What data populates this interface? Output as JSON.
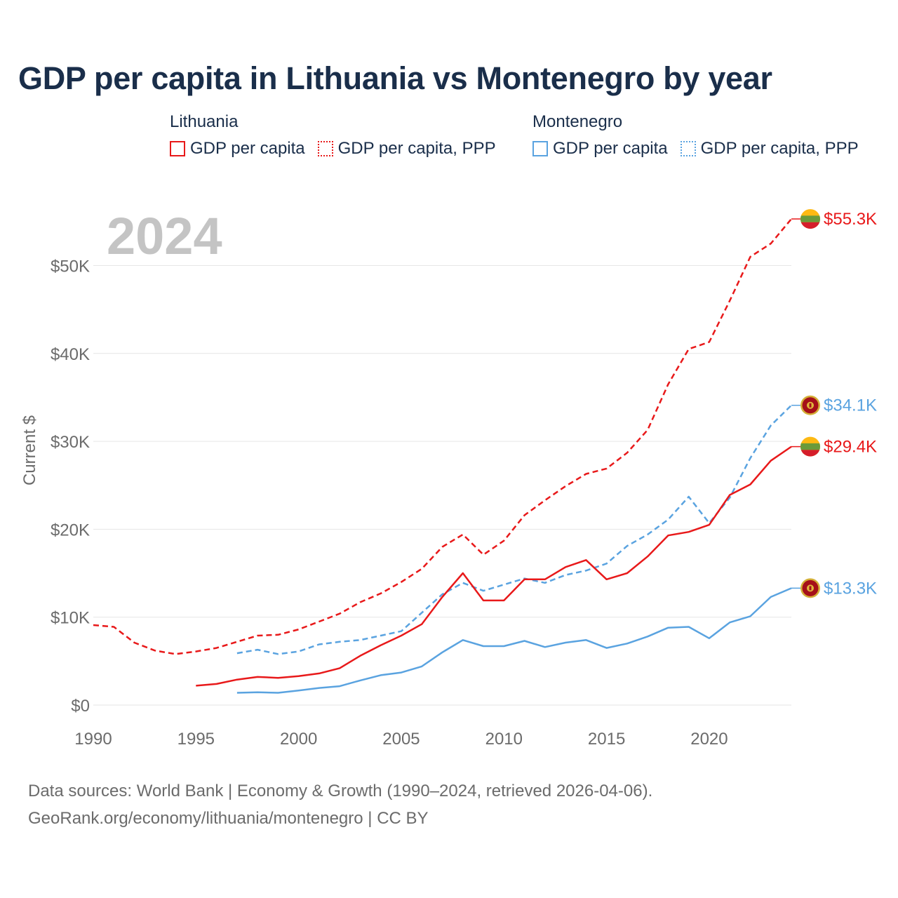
{
  "title": "GDP per capita in Lithuania vs Montenegro by year",
  "legend": {
    "lithuania": {
      "label": "Lithuania",
      "gdp": "GDP per capita",
      "ppp": "GDP per capita, PPP"
    },
    "montenegro": {
      "label": "Montenegro",
      "gdp": "GDP per capita",
      "ppp": "GDP per capita, PPP"
    }
  },
  "colors": {
    "lithuania": "#e8191a",
    "montenegro": "#5aa3e0",
    "year": "#c4c4c4",
    "axis_text": "#6b6b6b",
    "grid": "#e6e6e6"
  },
  "source": {
    "line1": "Data sources: World Bank | Economy & Growth (1990–2024, retrieved 2026-04-06).",
    "line2": "GeoRank.org/economy/lithuania/montenegro | CC BY"
  },
  "chart_data": {
    "type": "line",
    "title": "GDP per capita in Lithuania vs Montenegro by year",
    "year_label": "2024",
    "ylabel": "Current $",
    "xlabel": "",
    "xlim": [
      1990,
      2024
    ],
    "ylim": [
      0,
      55000
    ],
    "x_ticks": [
      1990,
      1995,
      2000,
      2005,
      2010,
      2015,
      2020
    ],
    "x_tick_labels": [
      "1990",
      "1995",
      "2000",
      "2005",
      "2010",
      "2015",
      "2020"
    ],
    "y_ticks": [
      0,
      10000,
      20000,
      30000,
      40000,
      50000
    ],
    "y_tick_labels": [
      "$0",
      "$10K",
      "$20K",
      "$30K",
      "$40K",
      "$50K"
    ],
    "grid": true,
    "series": [
      {
        "name": "Lithuania GDP per capita, PPP",
        "country": "lithuania",
        "style": "dashed",
        "end_label": "$55.3K",
        "points": [
          [
            1990,
            9100
          ],
          [
            1991,
            8900
          ],
          [
            1992,
            7100
          ],
          [
            1993,
            6200
          ],
          [
            1994,
            5800
          ],
          [
            1995,
            6100
          ],
          [
            1996,
            6500
          ],
          [
            1997,
            7200
          ],
          [
            1998,
            7900
          ],
          [
            1999,
            8000
          ],
          [
            2000,
            8600
          ],
          [
            2001,
            9500
          ],
          [
            2002,
            10400
          ],
          [
            2003,
            11700
          ],
          [
            2004,
            12700
          ],
          [
            2005,
            14000
          ],
          [
            2006,
            15500
          ],
          [
            2007,
            18000
          ],
          [
            2008,
            19400
          ],
          [
            2009,
            17100
          ],
          [
            2010,
            18700
          ],
          [
            2011,
            21600
          ],
          [
            2012,
            23300
          ],
          [
            2013,
            24900
          ],
          [
            2014,
            26300
          ],
          [
            2015,
            26900
          ],
          [
            2016,
            28700
          ],
          [
            2017,
            31300
          ],
          [
            2018,
            36500
          ],
          [
            2019,
            40500
          ],
          [
            2020,
            41300
          ],
          [
            2021,
            46000
          ],
          [
            2022,
            51000
          ],
          [
            2023,
            52500
          ],
          [
            2024,
            55300
          ]
        ]
      },
      {
        "name": "Montenegro GDP per capita, PPP",
        "country": "montenegro",
        "style": "dashed",
        "end_label": "$34.1K",
        "points": [
          [
            1997,
            5900
          ],
          [
            1998,
            6300
          ],
          [
            1999,
            5800
          ],
          [
            2000,
            6100
          ],
          [
            2001,
            6900
          ],
          [
            2002,
            7200
          ],
          [
            2003,
            7400
          ],
          [
            2004,
            7900
          ],
          [
            2005,
            8400
          ],
          [
            2006,
            10500
          ],
          [
            2007,
            12600
          ],
          [
            2008,
            13900
          ],
          [
            2009,
            13000
          ],
          [
            2010,
            13700
          ],
          [
            2011,
            14400
          ],
          [
            2012,
            13900
          ],
          [
            2013,
            14800
          ],
          [
            2014,
            15300
          ],
          [
            2015,
            16100
          ],
          [
            2016,
            18100
          ],
          [
            2017,
            19400
          ],
          [
            2018,
            21100
          ],
          [
            2019,
            23700
          ],
          [
            2020,
            20700
          ],
          [
            2021,
            23600
          ],
          [
            2022,
            28100
          ],
          [
            2023,
            31800
          ],
          [
            2024,
            34100
          ]
        ]
      },
      {
        "name": "Lithuania GDP per capita",
        "country": "lithuania",
        "style": "solid",
        "end_label": "$29.4K",
        "points": [
          [
            1995,
            2200
          ],
          [
            1996,
            2400
          ],
          [
            1997,
            2900
          ],
          [
            1998,
            3200
          ],
          [
            1999,
            3100
          ],
          [
            2000,
            3300
          ],
          [
            2001,
            3600
          ],
          [
            2002,
            4200
          ],
          [
            2003,
            5600
          ],
          [
            2004,
            6800
          ],
          [
            2005,
            7900
          ],
          [
            2006,
            9200
          ],
          [
            2007,
            12300
          ],
          [
            2008,
            15000
          ],
          [
            2009,
            11900
          ],
          [
            2010,
            11900
          ],
          [
            2011,
            14300
          ],
          [
            2012,
            14300
          ],
          [
            2013,
            15700
          ],
          [
            2014,
            16500
          ],
          [
            2015,
            14300
          ],
          [
            2016,
            15000
          ],
          [
            2017,
            16900
          ],
          [
            2018,
            19300
          ],
          [
            2019,
            19700
          ],
          [
            2020,
            20500
          ],
          [
            2021,
            23900
          ],
          [
            2022,
            25100
          ],
          [
            2023,
            27800
          ],
          [
            2024,
            29400
          ]
        ]
      },
      {
        "name": "Montenegro GDP per capita",
        "country": "montenegro",
        "style": "solid",
        "end_label": "$13.3K",
        "points": [
          [
            1997,
            1400
          ],
          [
            1998,
            1450
          ],
          [
            1999,
            1400
          ],
          [
            2000,
            1650
          ],
          [
            2001,
            1950
          ],
          [
            2002,
            2150
          ],
          [
            2003,
            2800
          ],
          [
            2004,
            3400
          ],
          [
            2005,
            3700
          ],
          [
            2006,
            4400
          ],
          [
            2007,
            6000
          ],
          [
            2008,
            7400
          ],
          [
            2009,
            6700
          ],
          [
            2010,
            6700
          ],
          [
            2011,
            7300
          ],
          [
            2012,
            6600
          ],
          [
            2013,
            7100
          ],
          [
            2014,
            7400
          ],
          [
            2015,
            6500
          ],
          [
            2016,
            7000
          ],
          [
            2017,
            7800
          ],
          [
            2018,
            8800
          ],
          [
            2019,
            8900
          ],
          [
            2020,
            7600
          ],
          [
            2021,
            9400
          ],
          [
            2022,
            10100
          ],
          [
            2023,
            12300
          ],
          [
            2024,
            13300
          ]
        ]
      }
    ]
  }
}
